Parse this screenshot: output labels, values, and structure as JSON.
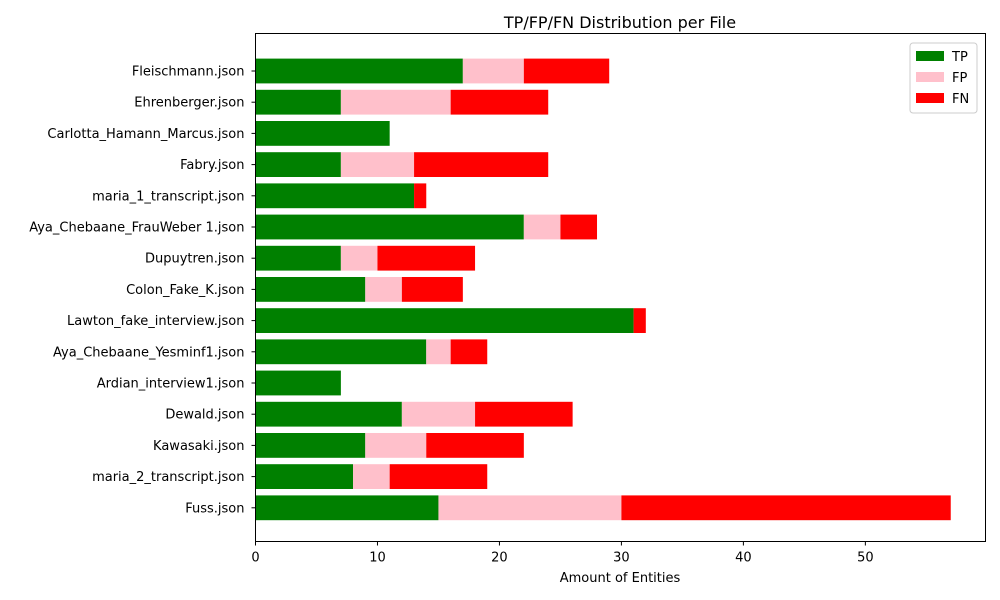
{
  "chart_data": {
    "type": "bar",
    "orientation": "horizontal",
    "stacked": true,
    "title": "TP/FP/FN Distribution per File",
    "xlabel": "Amount of Entities",
    "ylabel": "",
    "xlim": [
      0,
      60
    ],
    "xticks": [
      0,
      10,
      20,
      30,
      40,
      50
    ],
    "grid": false,
    "legend_position": "top-right",
    "categories": [
      "Fleischmann.json",
      "Ehrenberger.json",
      "Carlotta_Hamann_Marcus.json",
      "Fabry.json",
      "maria_1_transcript.json",
      "Aya_Chebaane_FrauWeber 1.json",
      "Dupuytren.json",
      "Colon_Fake_K.json",
      "Lawton_fake_interview.json",
      "Aya_Chebaane_Yesminf1.json",
      "Ardian_interview1.json",
      "Dewald.json",
      "Kawasaki.json",
      "maria_2_transcript.json",
      "Fuss.json"
    ],
    "series": [
      {
        "name": "TP",
        "color": "#008000",
        "values": [
          17,
          7,
          11,
          7,
          13,
          22,
          7,
          9,
          31,
          14,
          7,
          12,
          9,
          8,
          15
        ]
      },
      {
        "name": "FP",
        "color": "#ffc0cb",
        "values": [
          5,
          9,
          0,
          6,
          0,
          3,
          3,
          3,
          0,
          2,
          0,
          6,
          5,
          3,
          15
        ]
      },
      {
        "name": "FN",
        "color": "#ff0000",
        "values": [
          7,
          8,
          0,
          11,
          1,
          3,
          8,
          5,
          1,
          3,
          0,
          8,
          8,
          8,
          27
        ]
      }
    ]
  }
}
